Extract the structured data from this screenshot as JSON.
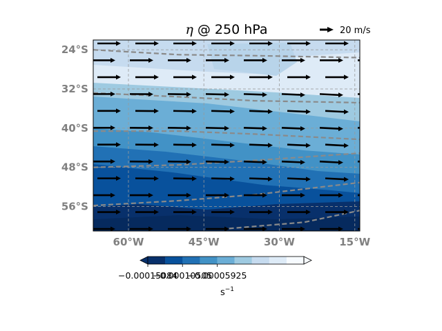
{
  "chart_data": {
    "type": "contourf+quiver",
    "title_symbol": "η",
    "title_rest": " @ 250 hPa",
    "x_ticks": [
      {
        "value": -60,
        "label": "60°W"
      },
      {
        "value": -45,
        "label": "45°W"
      },
      {
        "value": -30,
        "label": "30°W"
      },
      {
        "value": -15,
        "label": "15°W"
      }
    ],
    "y_ticks": [
      {
        "value": -24,
        "label": "24°S"
      },
      {
        "value": -32,
        "label": "32°S"
      },
      {
        "value": -40,
        "label": "40°S"
      },
      {
        "value": -48,
        "label": "48°S"
      },
      {
        "value": -56,
        "label": "56°S"
      }
    ],
    "xlim": [
      -67,
      -14
    ],
    "ylim": [
      -61,
      -22
    ],
    "grid": true,
    "quiver_key": {
      "label": "20 m/s",
      "value": 20
    },
    "colormap": "Blues_r",
    "colorbar": {
      "ticks": [
        "−0.00015084",
        "−0.00010505",
        "−0.00005925"
      ],
      "unit": "s",
      "unit_exp": "−1",
      "extend": "both",
      "level_colors": [
        "#08306b",
        "#08519c",
        "#2171b5",
        "#4292c6",
        "#6baed6",
        "#9ecae1",
        "#c6dbef",
        "#deebf7",
        "#f7fbff"
      ]
    },
    "contours": [
      {
        "note": "dashed gray",
        "lat_at_lon": [
          [
            -67,
            -24
          ],
          [
            -50,
            -25
          ],
          [
            -35,
            -25.2
          ],
          [
            -14,
            -25.6
          ]
        ]
      },
      {
        "note": "dashed gray",
        "lat_at_lon": [
          [
            -67,
            -32.8
          ],
          [
            -50,
            -33.6
          ],
          [
            -35,
            -34.4
          ],
          [
            -14,
            -34.8
          ]
        ]
      },
      {
        "note": "dashed gray",
        "lat_at_lon": [
          [
            -67,
            -40.6
          ],
          [
            -50,
            -40.6
          ],
          [
            -35,
            -41.2
          ],
          [
            -14,
            -42.3
          ]
        ]
      },
      {
        "note": "dashed gray",
        "lat_at_lon": [
          [
            -67,
            -48
          ],
          [
            -50,
            -47.5
          ],
          [
            -35,
            -46.6
          ],
          [
            -14,
            -45.1
          ]
        ]
      },
      {
        "note": "dashed gray",
        "lat_at_lon": [
          [
            -67,
            -55.8
          ],
          [
            -50,
            -54.8
          ],
          [
            -35,
            -53.6
          ],
          [
            -14,
            -51.1
          ]
        ]
      },
      {
        "note": "dashed gray",
        "lat_at_lon": [
          [
            -40,
            -60.5
          ],
          [
            -25,
            -59.2
          ],
          [
            -14,
            -56.8
          ]
        ]
      }
    ]
  }
}
